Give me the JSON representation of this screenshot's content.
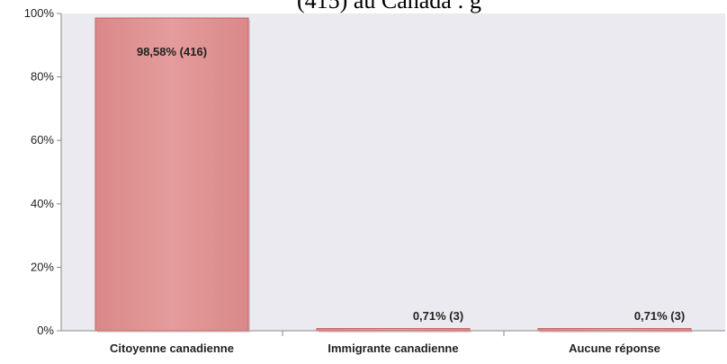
{
  "chart_data": {
    "type": "bar",
    "title_fragment": "(415) au Canada : g",
    "categories": [
      "Citoyenne canadienne",
      "Immigrante canadienne",
      "Aucune réponse"
    ],
    "values": [
      98.58,
      0.71,
      0.71
    ],
    "data_labels": [
      "98,58% (416)",
      "0,71% (3)",
      "0,71% (3)"
    ],
    "ylim": [
      0,
      100
    ],
    "y_ticks": [
      0,
      20,
      40,
      60,
      80,
      100
    ],
    "y_tick_labels": [
      "0%",
      "20%",
      "40%",
      "60%",
      "80%",
      "100%"
    ],
    "grid": false,
    "colors": {
      "plot_background": "#eaeaf0",
      "bar_fill": "#e59c9c",
      "bar_stroke": "#c46868",
      "axis": "#888888",
      "text": "#222222"
    }
  }
}
